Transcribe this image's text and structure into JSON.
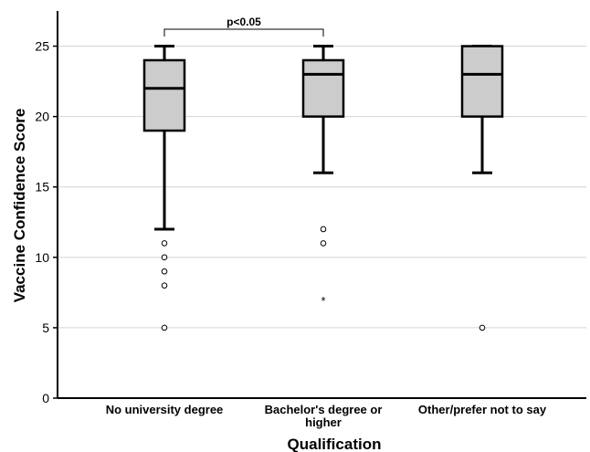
{
  "chart_data": {
    "type": "boxplot",
    "xlabel": "Qualification",
    "ylabel": "Vaccine Confidence Score",
    "ylim": [
      0,
      27.5
    ],
    "yticks": [
      "0",
      "5",
      "10",
      "15",
      "20",
      "25"
    ],
    "grid": "horizontal",
    "box_color": "#cccccc",
    "categories": [
      {
        "label_lines": [
          "No university degree"
        ],
        "whisker_low": 12,
        "q1": 19,
        "median": 22,
        "q3": 24,
        "whisker_high": 25,
        "outliers": [
          11,
          10,
          9,
          8,
          5
        ],
        "extremes": []
      },
      {
        "label_lines": [
          "Bachelor's degree or",
          "higher"
        ],
        "whisker_low": 16,
        "q1": 20,
        "median": 23,
        "q3": 24,
        "whisker_high": 25,
        "outliers": [
          12,
          11
        ],
        "extremes": [
          7
        ]
      },
      {
        "label_lines": [
          "Other/prefer not to say"
        ],
        "whisker_low": 16,
        "q1": 20,
        "median": 23,
        "q3": 25,
        "whisker_high": 25,
        "outliers": [
          5
        ],
        "extremes": []
      }
    ],
    "annotation": {
      "text": "p<0.05",
      "from": 0,
      "to": 1,
      "value": 26.2
    }
  }
}
